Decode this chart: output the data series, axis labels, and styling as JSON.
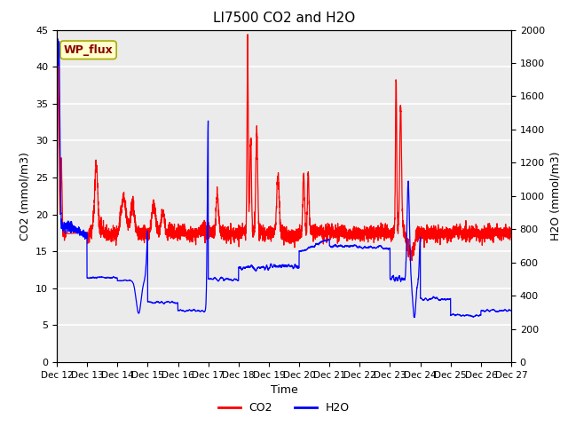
{
  "title": "LI7500 CO2 and H2O",
  "xlabel": "Time",
  "ylabel_left": "CO2 (mmol/m3)",
  "ylabel_right": "H2O (mmol/m3)",
  "ylim_left": [
    0,
    45
  ],
  "ylim_right": [
    0,
    2000
  ],
  "yticks_left": [
    0,
    5,
    10,
    15,
    20,
    25,
    30,
    35,
    40,
    45
  ],
  "yticks_right": [
    0,
    200,
    400,
    600,
    800,
    1000,
    1200,
    1400,
    1600,
    1800,
    2000
  ],
  "xtick_labels": [
    "Dec 12",
    "Dec 13",
    "Dec 14",
    "Dec 15",
    "Dec 16",
    "Dec 17",
    "Dec 18",
    "Dec 19",
    "Dec 20",
    "Dec 21",
    "Dec 22",
    "Dec 23",
    "Dec 24",
    "Dec 25",
    "Dec 26",
    "Dec 27"
  ],
  "co2_color": "#FF0000",
  "h2o_color": "#0000FF",
  "axes_background": "#EBEBEB",
  "annotation_text": "WP_flux",
  "annotation_color": "#8B0000",
  "annotation_bg": "#FFFFCC",
  "annotation_border": "#AAAA00",
  "legend_co2": "CO2",
  "legend_h2o": "H2O",
  "linewidth": 0.9
}
